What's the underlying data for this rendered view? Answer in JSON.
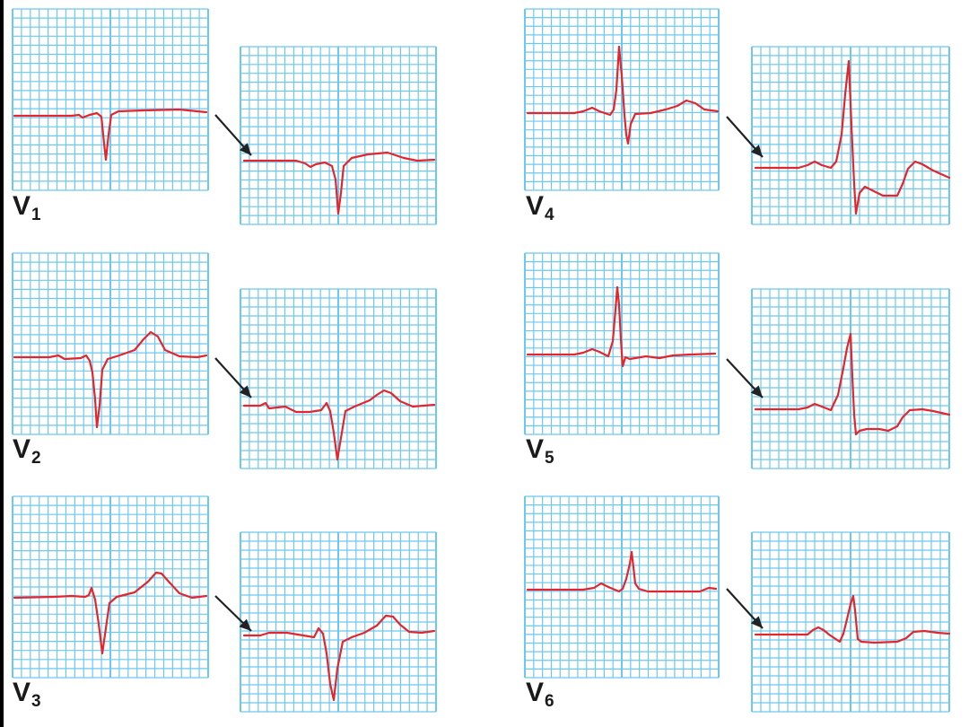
{
  "colors": {
    "grid_line": "#6cc8ee",
    "grid_background": "#ffffff",
    "trace": "#e3262e",
    "arrow": "#222222",
    "label_text": "#1a1a1a"
  },
  "leads": [
    {
      "id": "v1",
      "letter": "V",
      "number": "1"
    },
    {
      "id": "v2",
      "letter": "V",
      "number": "2"
    },
    {
      "id": "v3",
      "letter": "V",
      "number": "3"
    },
    {
      "id": "v4",
      "letter": "V",
      "number": "4"
    },
    {
      "id": "v5",
      "letter": "V",
      "number": "5"
    },
    {
      "id": "v6",
      "letter": "V",
      "number": "6"
    }
  ],
  "icons": {
    "progression": "arrow-down-right-icon"
  }
}
